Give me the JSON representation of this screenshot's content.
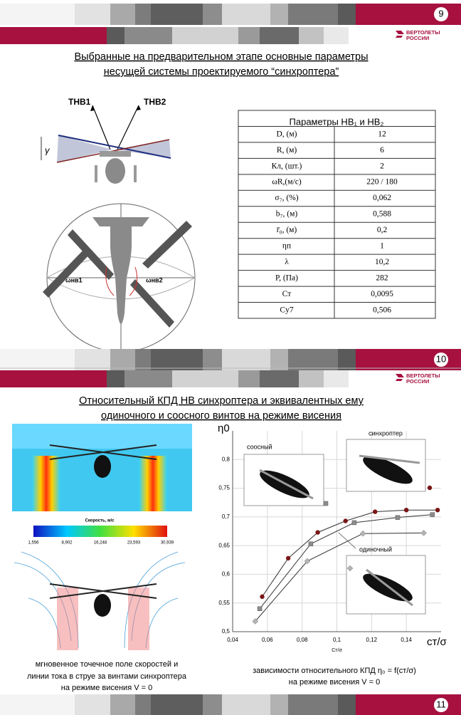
{
  "slide1": {
    "page": "9",
    "logo": [
      "ВЕРТОЛЕТЫ",
      "РОССИИ"
    ],
    "title": [
      "Выбранные на предварительном этапе основные параметры",
      "несущей системы проектируемого “синхроптера”"
    ],
    "figure_labels": {
      "t1": "TНВ1",
      "t2": "TНВ2",
      "gamma": "γ",
      "w1": "ωнв1",
      "w2": "ωнв2"
    },
    "table": {
      "header": "Параметры НВ₁ и НВ₂",
      "rows": [
        [
          "D, (м)",
          "12"
        ],
        [
          "R, (м)",
          "6"
        ],
        [
          "Кл, (шт.)",
          "2"
        ],
        [
          "ωR,(м/с)",
          "220 / 180"
        ],
        [
          "σ₇, (%)",
          "0,062"
        ],
        [
          "b₇, (м)",
          "0,588"
        ],
        [
          "r̄₀, (м)",
          "0,2"
        ],
        [
          "ηп",
          "1"
        ],
        [
          "λ",
          "10,2"
        ],
        [
          "P, (Па)",
          "282"
        ],
        [
          "Cт",
          "0,0095"
        ],
        [
          "Cу7",
          "0,506"
        ]
      ]
    },
    "footer_page": "10"
  },
  "slide2": {
    "logo": [
      "ВЕРТОЛЕТЫ",
      "РОССИИ"
    ],
    "title": [
      "Относительный КПД НВ синхроптера и эквивалентных ему",
      "одиночного и соосного винтов на режиме висения"
    ],
    "colorbar": {
      "title": "Скорость, м/с",
      "ticks": [
        "1,556",
        "8,902",
        "16,248",
        "23,593",
        "30,939"
      ]
    },
    "left_caption": [
      "мгновенное точечное поле скоростей и",
      "линии тока в струе за винтами синхроптера",
      "на режиме висения V = 0"
    ],
    "right_caption": [
      "зависимости относительного КПД η₀ = f(cт/σ)",
      "на режиме висения  V = 0"
    ],
    "footer_page": "11"
  },
  "chart_data": {
    "type": "scatter",
    "y_label": "η0",
    "x_label": "cт/σ",
    "x_label_small": "Cт/σ",
    "grid": true,
    "xlim": [
      0.04,
      0.16
    ],
    "ylim": [
      0.5,
      0.85
    ],
    "xticks": [
      {
        "value": 0.04,
        "label": "0,04"
      },
      {
        "value": 0.06,
        "label": "0,06"
      },
      {
        "value": 0.08,
        "label": "0,08"
      },
      {
        "value": 0.1,
        "label": "0,1"
      },
      {
        "value": 0.12,
        "label": "0,12"
      },
      {
        "value": 0.14,
        "label": "0,14"
      }
    ],
    "yticks": [
      {
        "value": 0.5,
        "label": "0,5"
      },
      {
        "value": 0.55,
        "label": "0,55"
      },
      {
        "value": 0.6,
        "label": "0,6"
      },
      {
        "value": 0.65,
        "label": "0,65"
      },
      {
        "value": 0.7,
        "label": "0,7"
      },
      {
        "value": 0.75,
        "label": "0,75"
      },
      {
        "value": 0.8,
        "label": "0,8"
      }
    ],
    "series": [
      {
        "name": "синхроптер",
        "color": "#7a1616",
        "marker": "circle",
        "x": [
          0.057,
          0.072,
          0.089,
          0.105,
          0.122,
          0.14,
          0.158
        ],
        "values": [
          0.561,
          0.628,
          0.673,
          0.693,
          0.709,
          0.712,
          0.712
        ]
      },
      {
        "name": "соосный",
        "color": "#8c8c8c",
        "marker": "square",
        "x": [
          0.0556,
          0.085,
          0.11,
          0.135,
          0.155
        ],
        "values": [
          0.54,
          0.653,
          0.69,
          0.699,
          0.704
        ]
      },
      {
        "name": "одиночный",
        "color": "#b4b4b4",
        "marker": "diamond",
        "x": [
          0.053,
          0.083,
          0.115,
          0.15
        ],
        "values": [
          0.518,
          0.623,
          0.671,
          0.672
        ]
      }
    ]
  }
}
